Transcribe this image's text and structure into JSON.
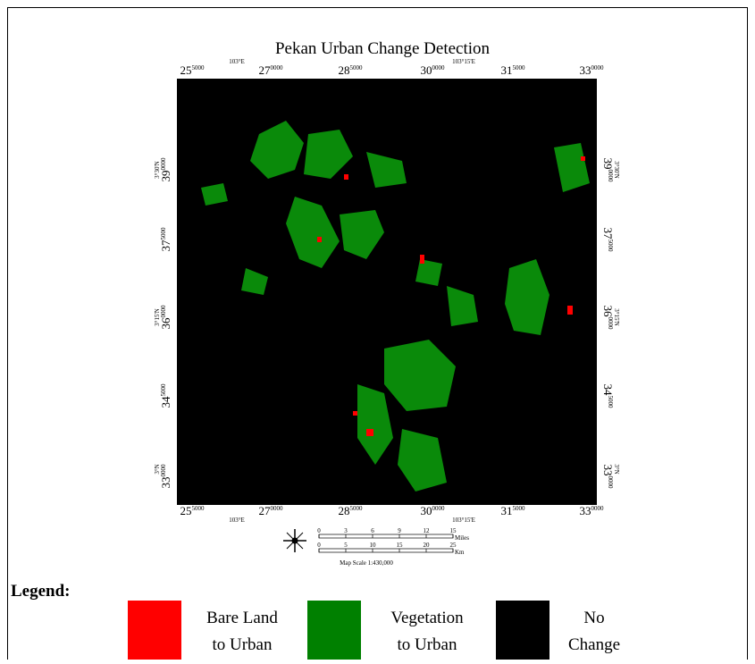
{
  "title": "Pekan Urban Change Detection",
  "map": {
    "easting_labels": [
      {
        "main": "25",
        "sup": "5000"
      },
      {
        "main": "27",
        "sup": "0000"
      },
      {
        "main": "28",
        "sup": "5000"
      },
      {
        "main": "30",
        "sup": "0000"
      },
      {
        "main": "31",
        "sup": "5000"
      },
      {
        "main": "33",
        "sup": "0000"
      }
    ],
    "northing_labels": [
      {
        "main": "39",
        "sup": "0000"
      },
      {
        "main": "37",
        "sup": "5000"
      },
      {
        "main": "36",
        "sup": "0000"
      },
      {
        "main": "34",
        "sup": "5000"
      },
      {
        "main": "33",
        "sup": "0000"
      }
    ],
    "longitude_labels": [
      "103°E",
      "103°15'E"
    ],
    "latitude_labels": [
      "3°30'N",
      "3°15'N",
      "3°N"
    ]
  },
  "scale_bar": {
    "miles_ticks": [
      0,
      3,
      6,
      9,
      12,
      15
    ],
    "miles_unit": "Miles",
    "km_ticks": [
      0,
      5,
      10,
      15,
      20,
      25
    ],
    "km_unit": "Km",
    "caption": "Map Scale 1:430,000"
  },
  "legend": {
    "title": "Legend:",
    "items": [
      {
        "line1": "Bare Land",
        "line2": "to Urban",
        "color": "#ff0000"
      },
      {
        "line1": "Vegetation",
        "line2": "to Urban",
        "color": "#008000"
      },
      {
        "line1": "No",
        "line2": "Change",
        "color": "#000000"
      }
    ]
  }
}
